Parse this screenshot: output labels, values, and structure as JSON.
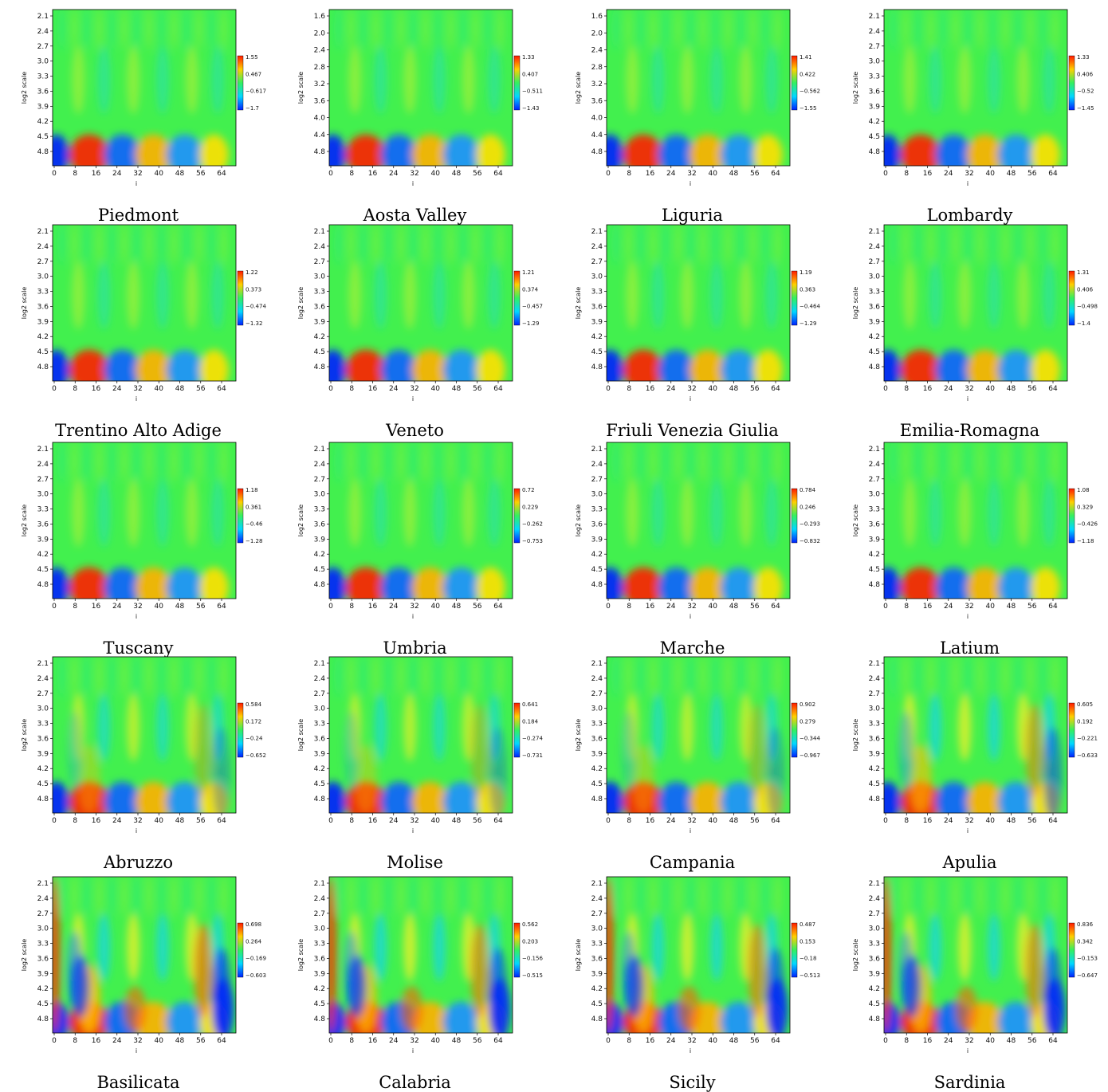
{
  "colors": {
    "low": "#0a2cff",
    "mid": "#33f060",
    "high": "#ff2a00",
    "background": "#42f04e"
  },
  "chart_data": [
    {
      "type": "heatmap",
      "title": "Piedmont",
      "xlabel": "i",
      "ylabel": "log2 scale",
      "xticks": [
        "0",
        "8",
        "16",
        "24",
        "32",
        "40",
        "48",
        "56",
        "64"
      ],
      "yticks": [
        "2.1",
        "2.4",
        "2.7",
        "3.0",
        "3.3",
        "3.6",
        "3.9",
        "4.2",
        "4.5",
        "4.8"
      ],
      "colorbar_labels": [
        "1.55",
        "0.467",
        "−0.617",
        "−1.7"
      ],
      "intensity": 1.0
    },
    {
      "type": "heatmap",
      "title": "Aosta Valley",
      "xlabel": "i",
      "ylabel": "log2 scale",
      "xticks": [
        "0",
        "8",
        "16",
        "24",
        "32",
        "40",
        "48",
        "56",
        "64"
      ],
      "yticks": [
        "1.6",
        "2.0",
        "2.4",
        "2.8",
        "3.2",
        "3.6",
        "4.0",
        "4.4",
        "4.8"
      ],
      "colorbar_labels": [
        "1.33",
        "0.407",
        "−0.511",
        "−1.43"
      ],
      "intensity": 1.0
    },
    {
      "type": "heatmap",
      "title": "Liguria",
      "xlabel": "i",
      "ylabel": "log2 scale",
      "xticks": [
        "0",
        "8",
        "16",
        "24",
        "32",
        "40",
        "48",
        "56",
        "64"
      ],
      "yticks": [
        "1.6",
        "2.0",
        "2.4",
        "2.8",
        "3.2",
        "3.6",
        "4.0",
        "4.4",
        "4.8"
      ],
      "colorbar_labels": [
        "1.41",
        "0.422",
        "−0.562",
        "−1.55"
      ],
      "intensity": 1.0
    },
    {
      "type": "heatmap",
      "title": "Lombardy",
      "xlabel": "i",
      "ylabel": "log2 scale",
      "xticks": [
        "0",
        "8",
        "16",
        "24",
        "32",
        "40",
        "48",
        "56",
        "64"
      ],
      "yticks": [
        "2.1",
        "2.4",
        "2.7",
        "3.0",
        "3.3",
        "3.6",
        "3.9",
        "4.2",
        "4.5",
        "4.8"
      ],
      "colorbar_labels": [
        "1.33",
        "0.406",
        "−0.52",
        "−1.45"
      ],
      "intensity": 1.0
    },
    {
      "type": "heatmap",
      "title": "Trentino Alto Adige",
      "xlabel": "i",
      "ylabel": "log2 scale",
      "xticks": [
        "0",
        "8",
        "16",
        "24",
        "32",
        "40",
        "48",
        "56",
        "64"
      ],
      "yticks": [
        "2.1",
        "2.4",
        "2.7",
        "3.0",
        "3.3",
        "3.6",
        "3.9",
        "4.2",
        "4.5",
        "4.8"
      ],
      "colorbar_labels": [
        "1.22",
        "0.373",
        "−0.474",
        "−1.32"
      ],
      "intensity": 1.0
    },
    {
      "type": "heatmap",
      "title": "Veneto",
      "xlabel": "i",
      "ylabel": "log2 scale",
      "xticks": [
        "0",
        "8",
        "16",
        "24",
        "32",
        "40",
        "48",
        "56",
        "64"
      ],
      "yticks": [
        "2.1",
        "2.4",
        "2.7",
        "3.0",
        "3.3",
        "3.6",
        "3.9",
        "4.2",
        "4.5",
        "4.8"
      ],
      "colorbar_labels": [
        "1.21",
        "0.374",
        "−0.457",
        "−1.29"
      ],
      "intensity": 1.0
    },
    {
      "type": "heatmap",
      "title": "Friuli Venezia Giulia",
      "xlabel": "i",
      "ylabel": "log2 scale",
      "xticks": [
        "0",
        "8",
        "16",
        "24",
        "32",
        "40",
        "48",
        "56",
        "64"
      ],
      "yticks": [
        "2.1",
        "2.4",
        "2.7",
        "3.0",
        "3.3",
        "3.6",
        "3.9",
        "4.2",
        "4.5",
        "4.8"
      ],
      "colorbar_labels": [
        "1.19",
        "0.363",
        "−0.464",
        "−1.29"
      ],
      "intensity": 1.0
    },
    {
      "type": "heatmap",
      "title": "Emilia-Romagna",
      "xlabel": "i",
      "ylabel": "log2 scale",
      "xticks": [
        "0",
        "8",
        "16",
        "24",
        "32",
        "40",
        "48",
        "56",
        "64"
      ],
      "yticks": [
        "2.1",
        "2.4",
        "2.7",
        "3.0",
        "3.3",
        "3.6",
        "3.9",
        "4.2",
        "4.5",
        "4.8"
      ],
      "colorbar_labels": [
        "1.31",
        "0.406",
        "−0.498",
        "−1.4"
      ],
      "intensity": 1.0
    },
    {
      "type": "heatmap",
      "title": "Tuscany",
      "xlabel": "i",
      "ylabel": "log2 scale",
      "xticks": [
        "0",
        "8",
        "16",
        "24",
        "32",
        "40",
        "48",
        "56",
        "64"
      ],
      "yticks": [
        "2.1",
        "2.4",
        "2.7",
        "3.0",
        "3.3",
        "3.6",
        "3.9",
        "4.2",
        "4.5",
        "4.8"
      ],
      "colorbar_labels": [
        "1.18",
        "0.361",
        "−0.46",
        "−1.28"
      ],
      "intensity": 1.0
    },
    {
      "type": "heatmap",
      "title": "Umbria",
      "xlabel": "i",
      "ylabel": "log2 scale",
      "xticks": [
        "0",
        "8",
        "16",
        "24",
        "32",
        "40",
        "48",
        "56",
        "64"
      ],
      "yticks": [
        "2.1",
        "2.4",
        "2.7",
        "3.0",
        "3.3",
        "3.6",
        "3.9",
        "4.2",
        "4.5",
        "4.8"
      ],
      "colorbar_labels": [
        "0.72",
        "0.229",
        "−0.262",
        "−0.753"
      ],
      "intensity": 1.0
    },
    {
      "type": "heatmap",
      "title": "Marche",
      "xlabel": "i",
      "ylabel": "log2 scale",
      "xticks": [
        "0",
        "8",
        "16",
        "24",
        "32",
        "40",
        "48",
        "56",
        "64"
      ],
      "yticks": [
        "2.1",
        "2.4",
        "2.7",
        "3.0",
        "3.3",
        "3.6",
        "3.9",
        "4.2",
        "4.5",
        "4.8"
      ],
      "colorbar_labels": [
        "0.784",
        "0.246",
        "−0.293",
        "−0.832"
      ],
      "intensity": 1.0
    },
    {
      "type": "heatmap",
      "title": "Latium",
      "xlabel": "i",
      "ylabel": "log2 scale",
      "xticks": [
        "0",
        "8",
        "16",
        "24",
        "32",
        "40",
        "48",
        "56",
        "64"
      ],
      "yticks": [
        "2.1",
        "2.4",
        "2.7",
        "3.0",
        "3.3",
        "3.6",
        "3.9",
        "4.2",
        "4.5",
        "4.8"
      ],
      "colorbar_labels": [
        "1.08",
        "0.329",
        "−0.426",
        "−1.18"
      ],
      "intensity": 1.0
    },
    {
      "type": "heatmap",
      "title": "Abruzzo",
      "xlabel": "i",
      "ylabel": "log2 scale",
      "xticks": [
        "0",
        "8",
        "16",
        "24",
        "32",
        "40",
        "48",
        "56",
        "64"
      ],
      "yticks": [
        "2.1",
        "2.4",
        "2.7",
        "3.0",
        "3.3",
        "3.6",
        "3.9",
        "4.2",
        "4.5",
        "4.8"
      ],
      "colorbar_labels": [
        "0.584",
        "0.172",
        "−0.24",
        "−0.652"
      ],
      "intensity": 1.6
    },
    {
      "type": "heatmap",
      "title": "Molise",
      "xlabel": "i",
      "ylabel": "log2 scale",
      "xticks": [
        "0",
        "8",
        "16",
        "24",
        "32",
        "40",
        "48",
        "56",
        "64"
      ],
      "yticks": [
        "2.1",
        "2.4",
        "2.7",
        "3.0",
        "3.3",
        "3.6",
        "3.9",
        "4.2",
        "4.5",
        "4.8"
      ],
      "colorbar_labels": [
        "0.641",
        "0.184",
        "−0.274",
        "−0.731"
      ],
      "intensity": 1.6
    },
    {
      "type": "heatmap",
      "title": "Campania",
      "xlabel": "i",
      "ylabel": "log2 scale",
      "xticks": [
        "0",
        "8",
        "16",
        "24",
        "32",
        "40",
        "48",
        "56",
        "64"
      ],
      "yticks": [
        "2.1",
        "2.4",
        "2.7",
        "3.0",
        "3.3",
        "3.6",
        "3.9",
        "4.2",
        "4.5",
        "4.8"
      ],
      "colorbar_labels": [
        "0.902",
        "0.279",
        "−0.344",
        "−0.967"
      ],
      "intensity": 1.6
    },
    {
      "type": "heatmap",
      "title": "Apulia",
      "xlabel": "i",
      "ylabel": "log2 scale",
      "xticks": [
        "0",
        "8",
        "16",
        "24",
        "32",
        "40",
        "48",
        "56",
        "64"
      ],
      "yticks": [
        "2.1",
        "2.4",
        "2.7",
        "3.0",
        "3.3",
        "3.6",
        "3.9",
        "4.2",
        "4.5",
        "4.8"
      ],
      "colorbar_labels": [
        "0.605",
        "0.192",
        "−0.221",
        "−0.633"
      ],
      "intensity": 2.0
    },
    {
      "type": "heatmap",
      "title": "Basilicata",
      "xlabel": "i",
      "ylabel": "log2 scale",
      "xticks": [
        "0",
        "8",
        "16",
        "24",
        "32",
        "40",
        "48",
        "56",
        "64"
      ],
      "yticks": [
        "2.1",
        "2.4",
        "2.7",
        "3.0",
        "3.3",
        "3.6",
        "3.9",
        "4.2",
        "4.5",
        "4.8"
      ],
      "colorbar_labels": [
        "0.698",
        "0.264",
        "−0.169",
        "−0.603"
      ],
      "intensity": 2.4
    },
    {
      "type": "heatmap",
      "title": "Calabria",
      "xlabel": "i",
      "ylabel": "log2 scale",
      "xticks": [
        "0",
        "8",
        "16",
        "24",
        "32",
        "40",
        "48",
        "56",
        "64"
      ],
      "yticks": [
        "2.1",
        "2.4",
        "2.7",
        "3.0",
        "3.3",
        "3.6",
        "3.9",
        "4.2",
        "4.5",
        "4.8"
      ],
      "colorbar_labels": [
        "0.562",
        "0.203",
        "−0.156",
        "−0.515"
      ],
      "intensity": 2.2
    },
    {
      "type": "heatmap",
      "title": "Sicily",
      "xlabel": "i",
      "ylabel": "log2 scale",
      "xticks": [
        "0",
        "8",
        "16",
        "24",
        "32",
        "40",
        "48",
        "56",
        "64"
      ],
      "yticks": [
        "2.1",
        "2.4",
        "2.7",
        "3.0",
        "3.3",
        "3.6",
        "3.9",
        "4.2",
        "4.5",
        "4.8"
      ],
      "colorbar_labels": [
        "0.487",
        "0.153",
        "−0.18",
        "−0.513"
      ],
      "intensity": 2.2
    },
    {
      "type": "heatmap",
      "title": "Sardinia",
      "xlabel": "i",
      "ylabel": "log2 scale",
      "xticks": [
        "0",
        "8",
        "16",
        "24",
        "32",
        "40",
        "48",
        "56",
        "64"
      ],
      "yticks": [
        "2.1",
        "2.4",
        "2.7",
        "3.0",
        "3.3",
        "3.6",
        "3.9",
        "4.2",
        "4.5",
        "4.8"
      ],
      "colorbar_labels": [
        "0.836",
        "0.342",
        "−0.153",
        "−0.647"
      ],
      "intensity": 2.2
    }
  ]
}
